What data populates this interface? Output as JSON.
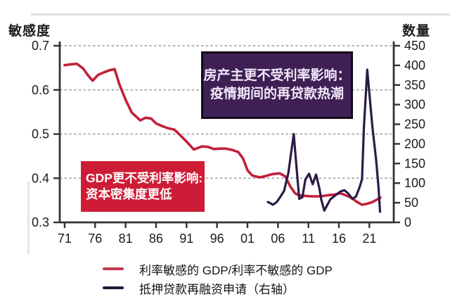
{
  "chart_data": {
    "type": "line",
    "title": "",
    "left_axis": {
      "label": "敏感度",
      "range": [
        0.3,
        0.7
      ],
      "tick_values": [
        0.3,
        0.4,
        0.5,
        0.6,
        0.7
      ],
      "tick_labels": [
        "0.3",
        "0.4",
        "0.5",
        "0.6",
        "0.7"
      ]
    },
    "right_axis": {
      "label": "数量",
      "range": [
        0,
        450
      ],
      "tick_values": [
        0,
        50,
        100,
        150,
        200,
        250,
        300,
        350,
        400,
        450
      ],
      "tick_labels": [
        "0",
        "50",
        "100",
        "150",
        "200",
        "250",
        "300",
        "350",
        "400",
        "450"
      ]
    },
    "x_axis": {
      "range": [
        1970.2,
        2025.0
      ],
      "tick_values": [
        1971,
        1976,
        1981,
        1986,
        1991,
        1996,
        2001,
        2006,
        2011,
        2016,
        2021
      ],
      "tick_labels": [
        "71",
        "76",
        "81",
        "86",
        "91",
        "96",
        "01",
        "06",
        "11",
        "16",
        "21"
      ]
    },
    "grid": {
      "style": "dashed",
      "color": "#9e9e9e",
      "left_axis_values": [
        0.4,
        0.5,
        0.6,
        0.7
      ]
    },
    "axis_color": "#333333",
    "tick_text_color": "#1b1b1b",
    "series": [
      {
        "name": "利率敏感的 GDP/利率不敏感的 GDP",
        "axis": "left",
        "color": "#c1203a",
        "width": 3.6,
        "points": [
          [
            1971,
            0.656
          ],
          [
            1972,
            0.658
          ],
          [
            1973,
            0.659
          ],
          [
            1974,
            0.649
          ],
          [
            1975,
            0.63
          ],
          [
            1975.6,
            0.621
          ],
          [
            1976.5,
            0.634
          ],
          [
            1977.5,
            0.64
          ],
          [
            1978.5,
            0.645
          ],
          [
            1979.2,
            0.647
          ],
          [
            1980,
            0.612
          ],
          [
            1981,
            0.578
          ],
          [
            1982,
            0.549
          ],
          [
            1983.4,
            0.531
          ],
          [
            1984.3,
            0.537
          ],
          [
            1985.2,
            0.535
          ],
          [
            1986,
            0.524
          ],
          [
            1987,
            0.518
          ],
          [
            1988,
            0.513
          ],
          [
            1989,
            0.51
          ],
          [
            1990,
            0.497
          ],
          [
            1991,
            0.483
          ],
          [
            1992.2,
            0.465
          ],
          [
            1993.5,
            0.472
          ],
          [
            1994.5,
            0.471
          ],
          [
            1995.5,
            0.466
          ],
          [
            1996.5,
            0.467
          ],
          [
            1997.5,
            0.467
          ],
          [
            1998.5,
            0.464
          ],
          [
            1999.5,
            0.459
          ],
          [
            2000.3,
            0.444
          ],
          [
            2001,
            0.418
          ],
          [
            2001.8,
            0.406
          ],
          [
            2003,
            0.402
          ],
          [
            2004,
            0.405
          ],
          [
            2005,
            0.409
          ],
          [
            2006.3,
            0.411
          ],
          [
            2007.2,
            0.404
          ],
          [
            2008,
            0.382
          ],
          [
            2008.8,
            0.366
          ],
          [
            2009.5,
            0.361
          ],
          [
            2010.5,
            0.36
          ],
          [
            2011.5,
            0.359
          ],
          [
            2012.5,
            0.359
          ],
          [
            2013.5,
            0.36
          ],
          [
            2014.5,
            0.362
          ],
          [
            2015.3,
            0.363
          ],
          [
            2016.2,
            0.366
          ],
          [
            2017,
            0.362
          ],
          [
            2018,
            0.356
          ],
          [
            2019,
            0.346
          ],
          [
            2019.8,
            0.34
          ],
          [
            2020.6,
            0.342
          ],
          [
            2021.5,
            0.346
          ],
          [
            2022.8,
            0.356
          ]
        ]
      },
      {
        "name": "抵押贷款再融资申请（右轴）",
        "axis": "right",
        "color": "#2e1a47",
        "width": 3.2,
        "points": [
          [
            2004.35,
            52
          ],
          [
            2005.2,
            45
          ],
          [
            2005.8,
            52
          ],
          [
            2006.3,
            63
          ],
          [
            2007,
            80
          ],
          [
            2007.7,
            125
          ],
          [
            2008.6,
            225
          ],
          [
            2009.1,
            130
          ],
          [
            2009.5,
            60
          ],
          [
            2010,
            64
          ],
          [
            2010.5,
            109
          ],
          [
            2011.1,
            124
          ],
          [
            2011.7,
            97
          ],
          [
            2012.25,
            122
          ],
          [
            2012.8,
            86
          ],
          [
            2013.1,
            58
          ],
          [
            2013.6,
            30
          ],
          [
            2014.6,
            59
          ],
          [
            2015.5,
            70
          ],
          [
            2016.3,
            79
          ],
          [
            2016.9,
            82
          ],
          [
            2017.5,
            74
          ],
          [
            2018.2,
            60
          ],
          [
            2018.8,
            66
          ],
          [
            2019.4,
            90
          ],
          [
            2019.8,
            110
          ],
          [
            2020.1,
            240
          ],
          [
            2020.65,
            389
          ],
          [
            2021.5,
            242
          ],
          [
            2022.1,
            160
          ],
          [
            2022.5,
            90
          ],
          [
            2022.75,
            27
          ]
        ]
      }
    ],
    "annotations": {
      "purple_box": {
        "line1": "房产主更不受利率影响：",
        "line2": "疫情期间的再贷款热潮",
        "bg": "#3e2055"
      },
      "red_box": {
        "line1": "GDP更不受利率影响:",
        "line2": "资本密集度更低",
        "bg": "#ce1c37"
      }
    },
    "legend": [
      {
        "label": "利率敏感的 GDP/利率不敏感的 GDP",
        "color": "#c43b52"
      },
      {
        "label": "抵押贷款再融资申请（右轴）",
        "color": "#241536"
      }
    ],
    "legend_position": "bottom"
  }
}
